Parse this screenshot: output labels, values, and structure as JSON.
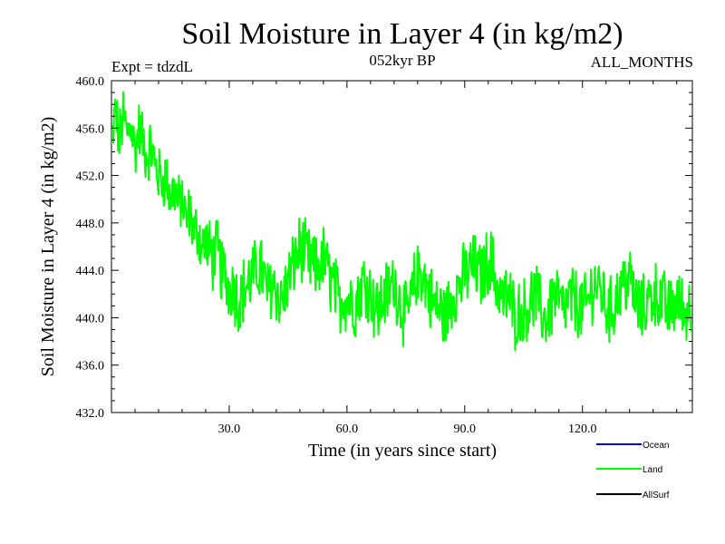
{
  "chart_data": {
    "type": "line",
    "title": "Soil Moisture in Layer 4 (in kg/m2)",
    "subtitle_left": "Expt = tdzdL",
    "subtitle_center": "052kyr BP",
    "subtitle_right": "ALL_MONTHS",
    "xlabel": "Time (in years since start)",
    "ylabel": "Soil Moisture in Layer 4 (in kg/m2)",
    "xlim": [
      0,
      148
    ],
    "ylim": [
      432,
      460
    ],
    "xticks": [
      30,
      60,
      90,
      120
    ],
    "xtick_labels": [
      "30.0",
      "60.0",
      "90.0",
      "120.0"
    ],
    "yticks": [
      432,
      436,
      440,
      444,
      448,
      452,
      456,
      460
    ],
    "ytick_labels": [
      "432.0",
      "436.0",
      "440.0",
      "444.0",
      "448.0",
      "452.0",
      "456.0",
      "460.0"
    ],
    "legend": [
      {
        "name": "Ocean",
        "color": "#0000cc"
      },
      {
        "name": "Land",
        "color": "#00ff00"
      },
      {
        "name": "AllSurf",
        "color": "#000000"
      }
    ],
    "series": [
      {
        "name": "Land",
        "color": "#00ff00",
        "x_start": 0,
        "x_step": 1,
        "values": [
          454.0,
          457.5,
          455.0,
          457.0,
          455.5,
          456.5,
          454.0,
          456.0,
          455.0,
          453.5,
          454.5,
          453.0,
          452.0,
          451.5,
          452.0,
          450.0,
          451.0,
          449.5,
          450.0,
          448.0,
          449.0,
          447.0,
          447.5,
          446.0,
          446.5,
          445.5,
          445.0,
          445.5,
          444.0,
          443.5,
          442.5,
          443.0,
          441.5,
          442.0,
          442.5,
          443.0,
          443.5,
          444.0,
          444.5,
          443.0,
          442.0,
          443.0,
          442.5,
          441.0,
          442.0,
          443.0,
          444.0,
          445.0,
          446.0,
          445.5,
          445.0,
          444.5,
          444.0,
          444.5,
          445.0,
          444.0,
          443.0,
          442.5,
          441.0,
          442.0,
          441.5,
          441.5,
          441.0,
          442.0,
          443.0,
          443.0,
          442.0,
          441.0,
          440.5,
          441.5,
          442.0,
          442.5,
          443.0,
          442.0,
          441.0,
          440.0,
          441.0,
          442.5,
          443.5,
          444.0,
          443.0,
          442.0,
          441.0,
          441.0,
          440.5,
          440.0,
          441.0,
          442.0,
          442.5,
          443.0,
          443.5,
          444.0,
          444.5,
          444.0,
          443.5,
          444.0,
          445.0,
          444.5,
          443.0,
          442.0,
          441.5,
          442.0,
          441.0,
          440.0,
          440.5,
          440.5,
          441.0,
          441.5,
          442.0,
          441.0,
          440.0,
          440.0,
          441.0,
          442.0,
          441.5,
          440.5,
          441.0,
          441.5,
          441.5,
          441.0,
          440.5,
          441.0,
          442.0,
          443.0,
          442.5,
          442.0,
          441.0,
          440.5,
          441.0,
          442.0,
          442.5,
          443.0,
          443.5,
          442.0,
          441.0,
          440.5,
          441.0,
          441.5,
          442.0,
          442.0,
          441.5,
          441.0,
          440.5,
          441.0,
          441.5,
          441.0,
          440.5,
          441.0,
          441.0
        ]
      }
    ]
  }
}
